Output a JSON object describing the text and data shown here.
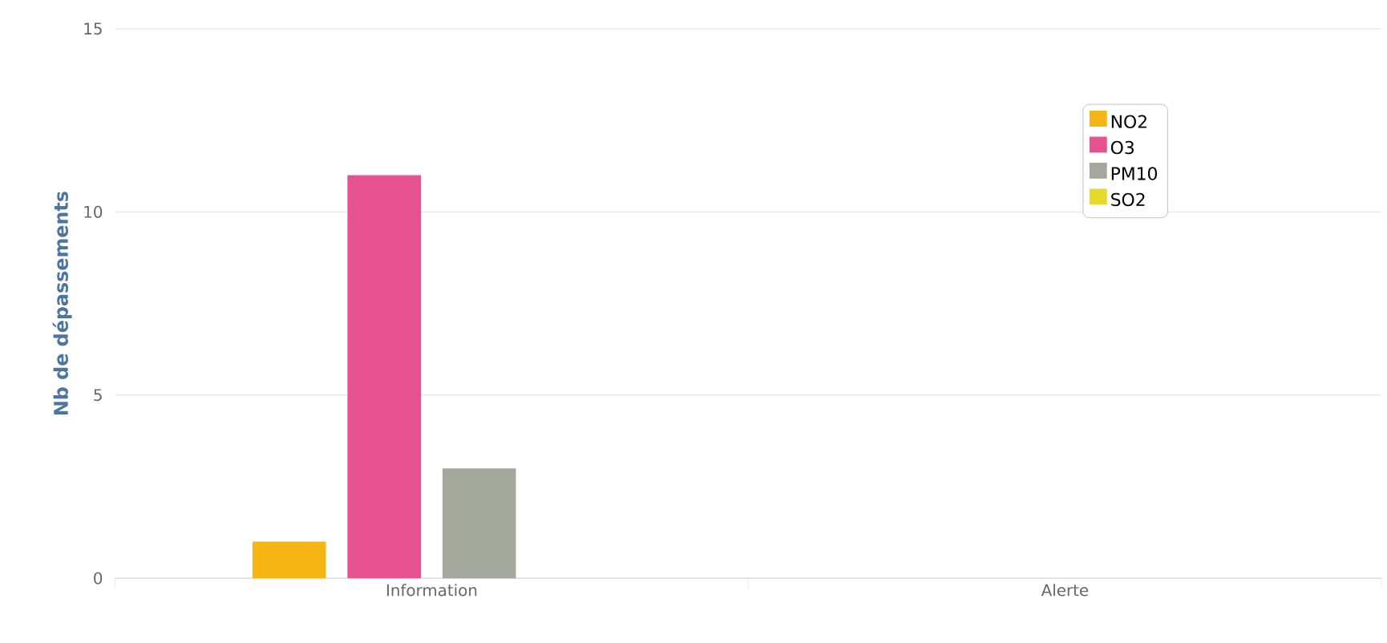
{
  "chart_data": {
    "type": "bar",
    "ylabel": "Nb de dépassements",
    "categories": [
      "Information",
      "Alerte"
    ],
    "series": [
      {
        "name": "NO2",
        "color": "#f5b512",
        "values": [
          1,
          0
        ]
      },
      {
        "name": "O3",
        "color": "#e5528f",
        "values": [
          11,
          0
        ]
      },
      {
        "name": "PM10",
        "color": "#a4a79c",
        "values": [
          3,
          0
        ]
      },
      {
        "name": "SO2",
        "color": "#e6d82c",
        "values": [
          0,
          0
        ]
      }
    ],
    "ylim": [
      0,
      15
    ],
    "yticks": [
      0,
      5,
      10,
      15
    ],
    "grid": "y",
    "legend": "top right"
  }
}
